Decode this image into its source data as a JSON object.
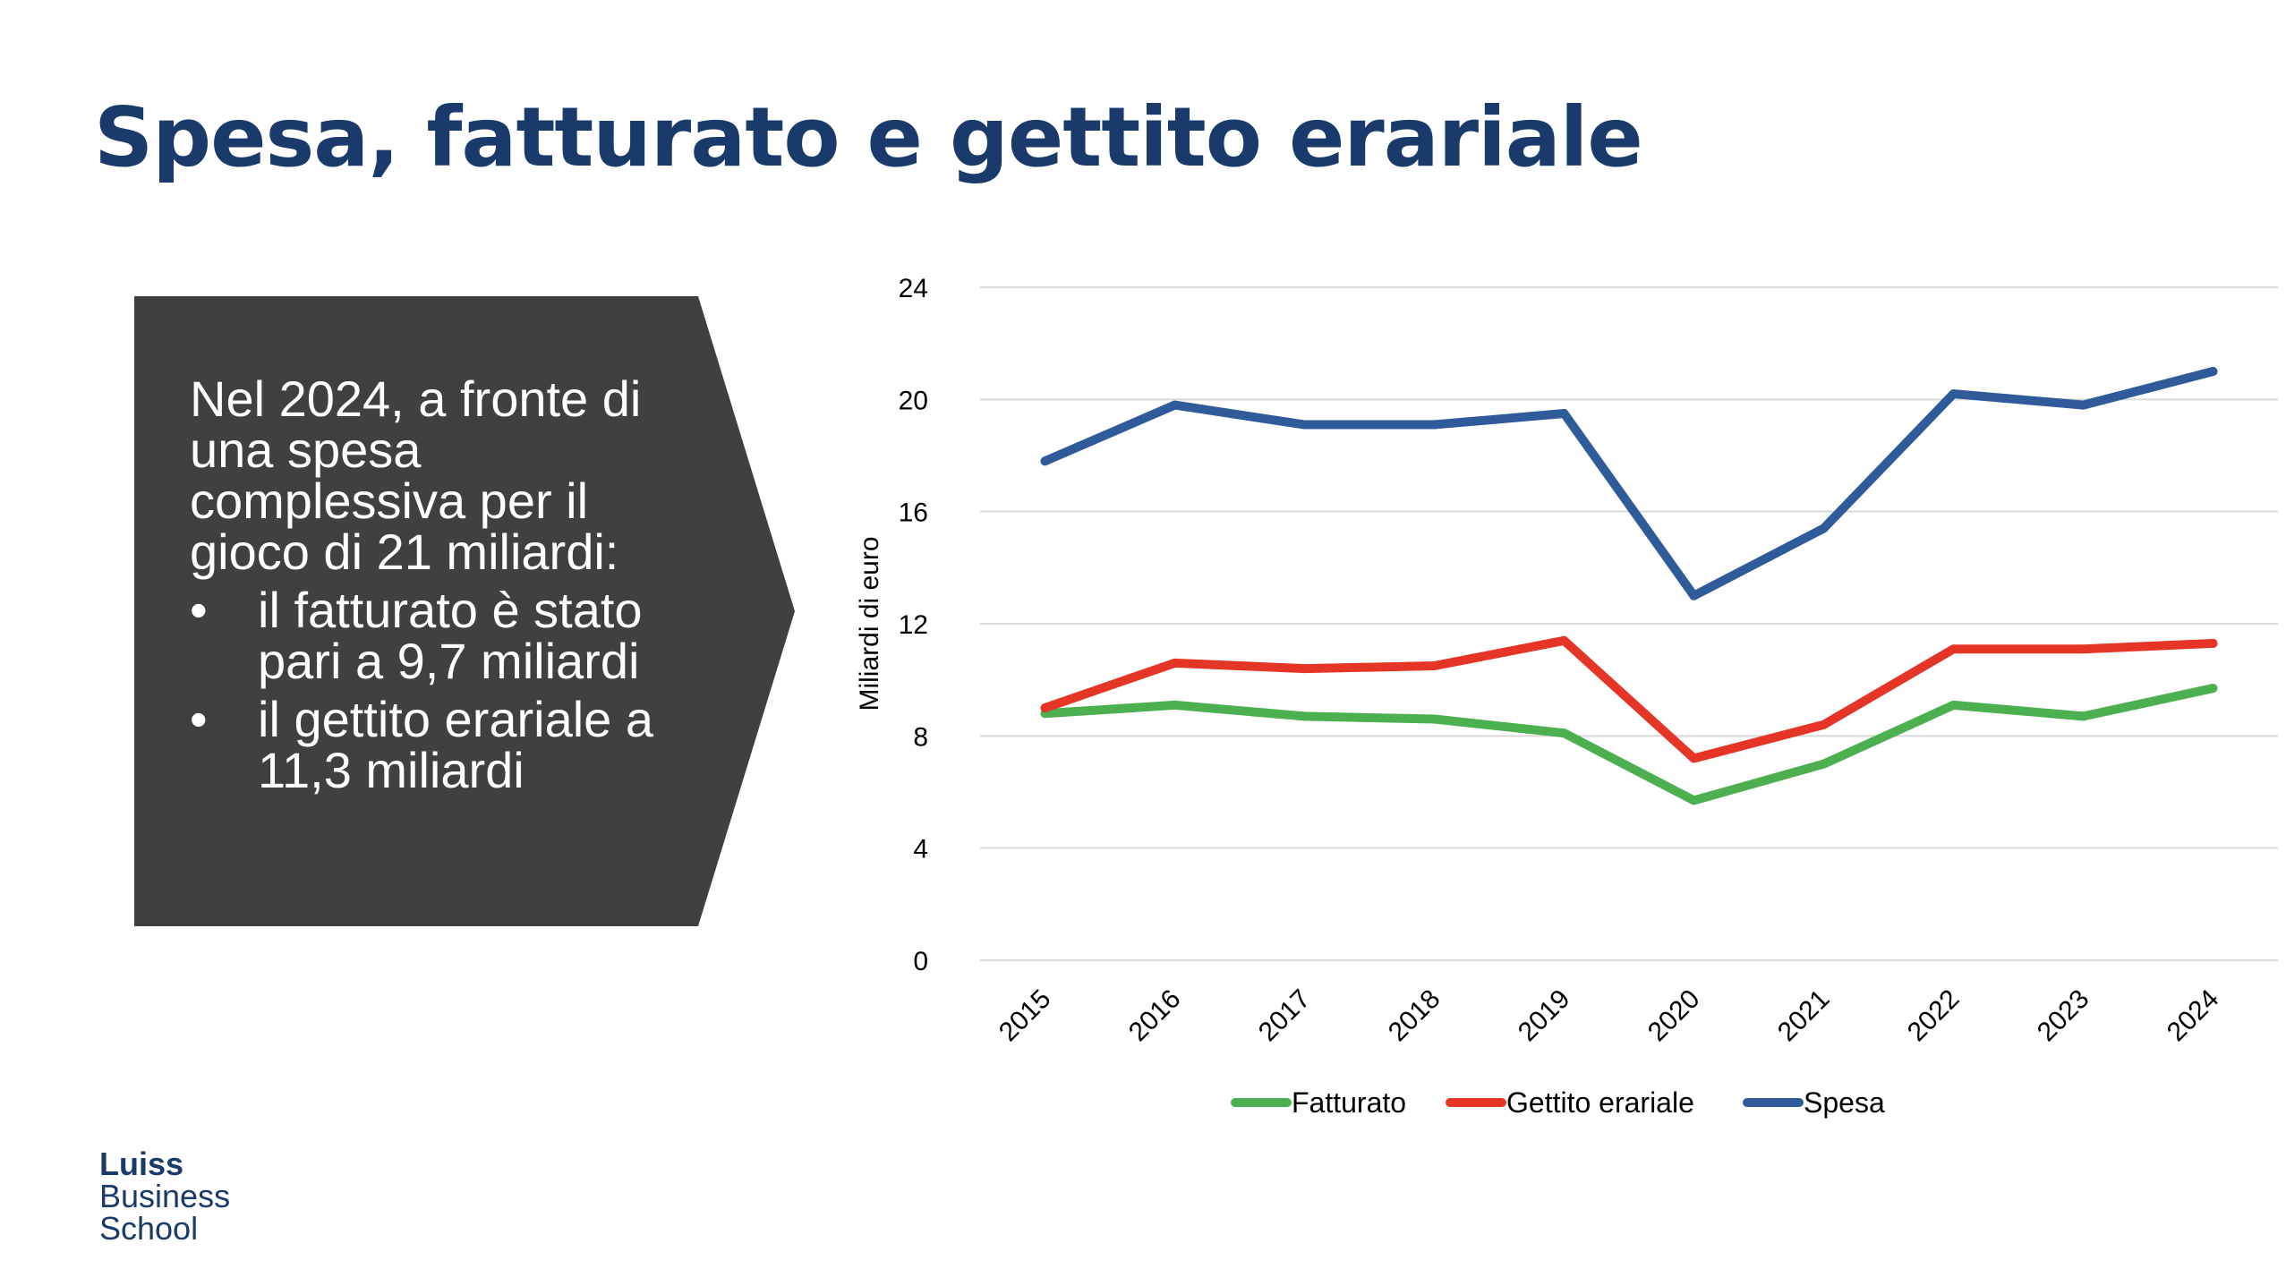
{
  "title": "Spesa, fatturato e gettito erariale",
  "callout": {
    "intro": "Nel 2024, a fronte di una spesa complessiva per il gioco di 21 miliardi:",
    "bullet_symbol": "•",
    "bullets": [
      "il fatturato è stato pari a 9,7 miliardi",
      "il gettito erariale a 11,3 miliardi"
    ],
    "background_color": "#404040"
  },
  "logo": {
    "line1": "Luiss",
    "line2": "Business",
    "line3": "School"
  },
  "chart_data": {
    "type": "line",
    "title": "",
    "xlabel": "",
    "ylabel": "Miliardi di euro",
    "x": [
      "2015",
      "2016",
      "2017",
      "2018",
      "2019",
      "2020",
      "2021",
      "2022",
      "2023",
      "2024"
    ],
    "ylim": [
      0,
      24
    ],
    "yticks": [
      "0",
      "4",
      "8",
      "12",
      "16",
      "20",
      "24"
    ],
    "grid": true,
    "legend_position": "bottom",
    "series": [
      {
        "name": "Fatturato",
        "color": "#4caf50",
        "values": [
          8.8,
          9.1,
          8.7,
          8.6,
          8.1,
          5.7,
          7.0,
          9.1,
          8.7,
          9.7
        ]
      },
      {
        "name": "Gettito erariale",
        "color": "#e53526",
        "values": [
          9.0,
          10.6,
          10.4,
          10.5,
          11.4,
          7.2,
          8.4,
          11.1,
          11.1,
          11.3
        ]
      },
      {
        "name": "Spesa",
        "color": "#2f5b9a",
        "values": [
          17.8,
          19.8,
          19.1,
          19.1,
          19.5,
          13.0,
          15.4,
          20.2,
          19.8,
          21.0
        ]
      }
    ]
  }
}
